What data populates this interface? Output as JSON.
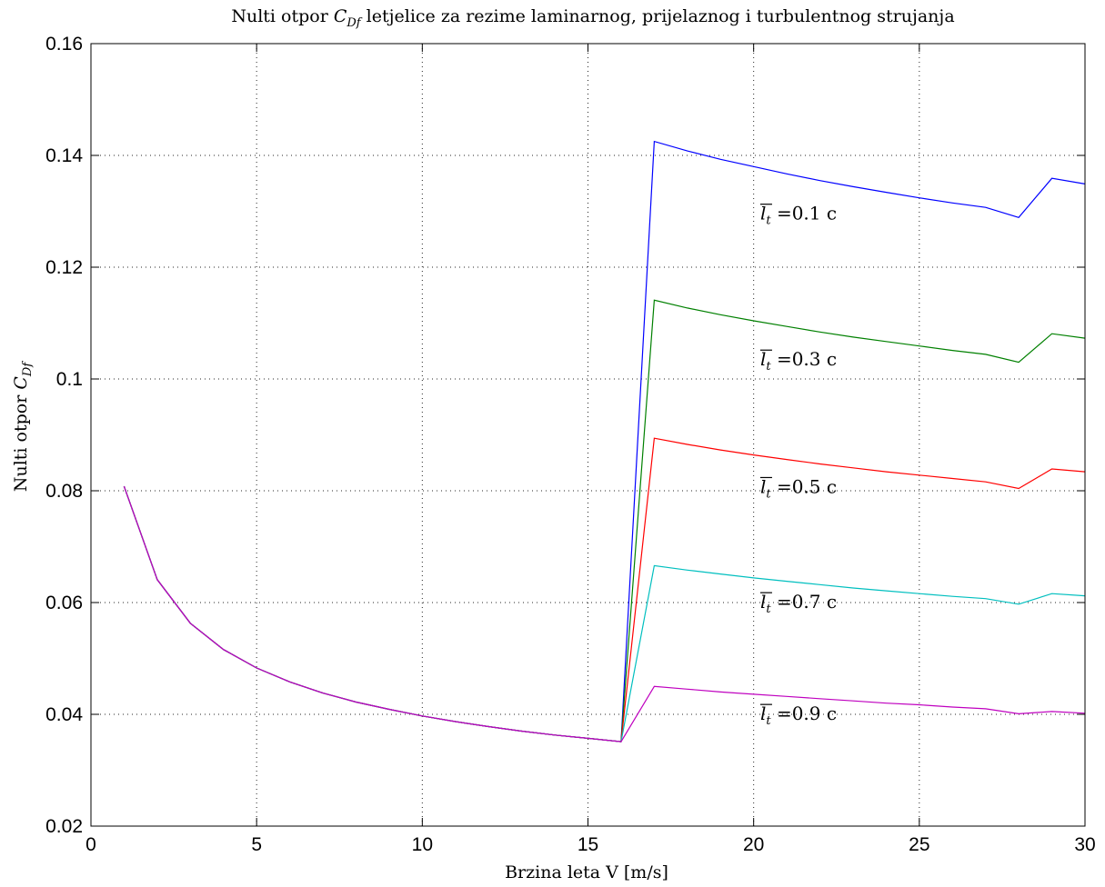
{
  "chart_data": {
    "type": "line",
    "title_parts": {
      "pre": "Nulti otpor ",
      "sym": "C",
      "sub": "Df",
      "post": " letjelice za rezime laminarnog, prijelaznog i turbulentnog strujanja"
    },
    "xlabel": "Brzina leta V [m/s]",
    "ylabel_parts": {
      "pre": "Nulti otpor ",
      "sym": "C",
      "sub": "Df"
    },
    "xlim": [
      0,
      30
    ],
    "ylim": [
      0.02,
      0.16
    ],
    "grid": true,
    "x_ticks": [
      0,
      5,
      10,
      15,
      20,
      25,
      30
    ],
    "x_tick_labels": [
      "0",
      "5",
      "10",
      "15",
      "20",
      "25",
      "30"
    ],
    "y_ticks": [
      0.02,
      0.04,
      0.06,
      0.08,
      0.1,
      0.12,
      0.14,
      0.16
    ],
    "y_tick_labels": [
      "0.02",
      "0.04",
      "0.06",
      "0.08",
      "0.1",
      "0.12",
      "0.14",
      "0.16"
    ],
    "series": [
      {
        "label": "l_t =0.1 c",
        "color": "#0000ff",
        "points": [
          [
            1,
            0.0808
          ],
          [
            2,
            0.0641
          ],
          [
            3,
            0.0563
          ],
          [
            4,
            0.0516
          ],
          [
            5,
            0.0483
          ],
          [
            6,
            0.0458
          ],
          [
            7,
            0.0438
          ],
          [
            8,
            0.0422
          ],
          [
            9,
            0.0409
          ],
          [
            10,
            0.0397
          ],
          [
            11,
            0.0387
          ],
          [
            12,
            0.0378
          ],
          [
            13,
            0.037
          ],
          [
            14,
            0.0363
          ],
          [
            15,
            0.0357
          ],
          [
            16,
            0.0351
          ],
          [
            17,
            0.1425
          ],
          [
            18,
            0.1408
          ],
          [
            19,
            0.1393
          ],
          [
            20,
            0.138
          ],
          [
            21,
            0.1367
          ],
          [
            22,
            0.1355
          ],
          [
            23,
            0.1344
          ],
          [
            24,
            0.1334
          ],
          [
            25,
            0.1324
          ],
          [
            26,
            0.1315
          ],
          [
            27,
            0.1307
          ],
          [
            28,
            0.1289
          ],
          [
            29,
            0.1359
          ],
          [
            30,
            0.1349
          ]
        ]
      },
      {
        "label": "l_t =0.3 c",
        "color": "#008000",
        "points": [
          [
            1,
            0.0808
          ],
          [
            2,
            0.0641
          ],
          [
            3,
            0.0563
          ],
          [
            4,
            0.0516
          ],
          [
            5,
            0.0483
          ],
          [
            6,
            0.0458
          ],
          [
            7,
            0.0438
          ],
          [
            8,
            0.0422
          ],
          [
            9,
            0.0409
          ],
          [
            10,
            0.0397
          ],
          [
            11,
            0.0387
          ],
          [
            12,
            0.0378
          ],
          [
            13,
            0.037
          ],
          [
            14,
            0.0363
          ],
          [
            15,
            0.0357
          ],
          [
            16,
            0.0351
          ],
          [
            17,
            0.1141
          ],
          [
            18,
            0.1127
          ],
          [
            19,
            0.1115
          ],
          [
            20,
            0.1104
          ],
          [
            21,
            0.1094
          ],
          [
            22,
            0.1084
          ],
          [
            23,
            0.1075
          ],
          [
            24,
            0.1067
          ],
          [
            25,
            0.1059
          ],
          [
            26,
            0.1051
          ],
          [
            27,
            0.1044
          ],
          [
            28,
            0.103
          ],
          [
            29,
            0.1081
          ],
          [
            30,
            0.1073
          ]
        ]
      },
      {
        "label": "l_t =0.5 c",
        "color": "#ff0000",
        "points": [
          [
            1,
            0.0808
          ],
          [
            2,
            0.0641
          ],
          [
            3,
            0.0563
          ],
          [
            4,
            0.0516
          ],
          [
            5,
            0.0483
          ],
          [
            6,
            0.0458
          ],
          [
            7,
            0.0438
          ],
          [
            8,
            0.0422
          ],
          [
            9,
            0.0409
          ],
          [
            10,
            0.0397
          ],
          [
            11,
            0.0387
          ],
          [
            12,
            0.0378
          ],
          [
            13,
            0.037
          ],
          [
            14,
            0.0363
          ],
          [
            15,
            0.0357
          ],
          [
            16,
            0.0351
          ],
          [
            17,
            0.0894
          ],
          [
            18,
            0.0883
          ],
          [
            19,
            0.0873
          ],
          [
            20,
            0.0864
          ],
          [
            21,
            0.0856
          ],
          [
            22,
            0.0848
          ],
          [
            23,
            0.0841
          ],
          [
            24,
            0.0834
          ],
          [
            25,
            0.0828
          ],
          [
            26,
            0.0822
          ],
          [
            27,
            0.0816
          ],
          [
            28,
            0.0804
          ],
          [
            29,
            0.0839
          ],
          [
            30,
            0.0834
          ]
        ]
      },
      {
        "label": "l_t =0.7 c",
        "color": "#00bfbf",
        "points": [
          [
            1,
            0.0808
          ],
          [
            2,
            0.0641
          ],
          [
            3,
            0.0563
          ],
          [
            4,
            0.0516
          ],
          [
            5,
            0.0483
          ],
          [
            6,
            0.0458
          ],
          [
            7,
            0.0438
          ],
          [
            8,
            0.0422
          ],
          [
            9,
            0.0409
          ],
          [
            10,
            0.0397
          ],
          [
            11,
            0.0387
          ],
          [
            12,
            0.0378
          ],
          [
            13,
            0.037
          ],
          [
            14,
            0.0363
          ],
          [
            15,
            0.0357
          ],
          [
            16,
            0.0351
          ],
          [
            17,
            0.0666
          ],
          [
            18,
            0.0658
          ],
          [
            19,
            0.0651
          ],
          [
            20,
            0.0644
          ],
          [
            21,
            0.0638
          ],
          [
            22,
            0.0632
          ],
          [
            23,
            0.0626
          ],
          [
            24,
            0.0621
          ],
          [
            25,
            0.0616
          ],
          [
            26,
            0.0611
          ],
          [
            27,
            0.0607
          ],
          [
            28,
            0.0597
          ],
          [
            29,
            0.0616
          ],
          [
            30,
            0.0612
          ]
        ]
      },
      {
        "label": "l_t =0.9 c",
        "color": "#bf00bf",
        "points": [
          [
            1,
            0.0808
          ],
          [
            2,
            0.0641
          ],
          [
            3,
            0.0563
          ],
          [
            4,
            0.0516
          ],
          [
            5,
            0.0483
          ],
          [
            6,
            0.0458
          ],
          [
            7,
            0.0438
          ],
          [
            8,
            0.0422
          ],
          [
            9,
            0.0409
          ],
          [
            10,
            0.0397
          ],
          [
            11,
            0.0387
          ],
          [
            12,
            0.0378
          ],
          [
            13,
            0.037
          ],
          [
            14,
            0.0363
          ],
          [
            15,
            0.0357
          ],
          [
            16,
            0.0351
          ],
          [
            17,
            0.045
          ],
          [
            18,
            0.0445
          ],
          [
            19,
            0.044
          ],
          [
            20,
            0.0436
          ],
          [
            21,
            0.0432
          ],
          [
            22,
            0.0428
          ],
          [
            23,
            0.0424
          ],
          [
            24,
            0.042
          ],
          [
            25,
            0.0417
          ],
          [
            26,
            0.0413
          ],
          [
            27,
            0.041
          ],
          [
            28,
            0.0401
          ],
          [
            29,
            0.0405
          ],
          [
            30,
            0.0402
          ]
        ]
      }
    ],
    "annotations": [
      {
        "sym": "l",
        "sub": "t",
        "text": " =0.1 c",
        "x": 20.2,
        "y": 0.1285
      },
      {
        "sym": "l",
        "sub": "t",
        "text": " =0.3 c",
        "x": 20.2,
        "y": 0.1024
      },
      {
        "sym": "l",
        "sub": "t",
        "text": " =0.5 c",
        "x": 20.2,
        "y": 0.0796
      },
      {
        "sym": "l",
        "sub": "t",
        "text": " =0.7 c",
        "x": 20.2,
        "y": 0.059
      },
      {
        "sym": "l",
        "sub": "t",
        "text": " =0.9 c",
        "x": 20.2,
        "y": 0.039
      }
    ]
  }
}
